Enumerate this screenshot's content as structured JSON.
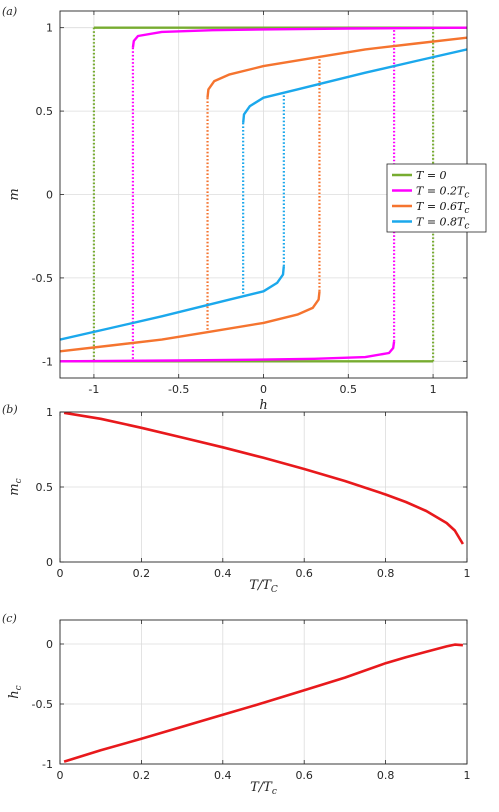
{
  "chart_data": [
    {
      "panel_label": "(a)",
      "type": "line",
      "xlabel": "h",
      "ylabel": "m",
      "xlim": [
        -1.2,
        1.2
      ],
      "ylim": [
        -1.1,
        1.1
      ],
      "xticks": [
        -1,
        -0.5,
        0,
        0.5,
        1
      ],
      "xtick_labels": [
        "-1",
        "-0.5",
        "0",
        "0.5",
        "1"
      ],
      "yticks": [
        -1,
        -0.5,
        0,
        0.5,
        1
      ],
      "ytick_labels": [
        "-1",
        "-0.5",
        "0",
        "0.5",
        "1"
      ],
      "grid": true,
      "legend_position": "right",
      "series": [
        {
          "name": "T = 0",
          "legend_main": "T = 0",
          "legend_sub": "",
          "color": "#77ac30",
          "switch_field": 1.0,
          "switch_magnetization": 1.0,
          "upper_branch": [
            [
              -1.0,
              1.0
            ],
            [
              -0.95,
              1.0
            ],
            [
              1.2,
              1.0
            ]
          ],
          "lower_branch": [
            [
              -1.2,
              -1.0
            ],
            [
              0.95,
              -1.0
            ],
            [
              1.0,
              -1.0
            ]
          ]
        },
        {
          "name": "T = 0.2Tc",
          "legend_main": "T = 0.2T",
          "legend_sub": "c",
          "color": "#ff00ff",
          "switch_field": 0.77,
          "switch_magnetization": 0.88,
          "upper_branch": [
            [
              -0.77,
              0.88
            ],
            [
              -0.765,
              0.92
            ],
            [
              -0.74,
              0.95
            ],
            [
              -0.6,
              0.975
            ],
            [
              -0.3,
              0.985
            ],
            [
              0.0,
              0.99
            ],
            [
              0.5,
              0.995
            ],
            [
              1.2,
              1.0
            ]
          ],
          "lower_branch": [
            [
              -1.2,
              -1.0
            ],
            [
              -0.5,
              -0.995
            ],
            [
              0.0,
              -0.99
            ],
            [
              0.3,
              -0.985
            ],
            [
              0.6,
              -0.975
            ],
            [
              0.74,
              -0.95
            ],
            [
              0.765,
              -0.92
            ],
            [
              0.77,
              -0.88
            ]
          ]
        },
        {
          "name": "T = 0.6Tc",
          "legend_main": "T = 0.6T",
          "legend_sub": "c",
          "color": "#f5742f",
          "switch_field": 0.33,
          "switch_magnetization": 0.58,
          "upper_branch": [
            [
              -0.33,
              0.58
            ],
            [
              -0.325,
              0.63
            ],
            [
              -0.29,
              0.68
            ],
            [
              -0.2,
              0.72
            ],
            [
              0.0,
              0.77
            ],
            [
              0.3,
              0.82
            ],
            [
              0.6,
              0.87
            ],
            [
              0.9,
              0.905
            ],
            [
              1.2,
              0.94
            ]
          ],
          "lower_branch": [
            [
              -1.2,
              -0.94
            ],
            [
              -0.9,
              -0.905
            ],
            [
              -0.6,
              -0.87
            ],
            [
              -0.3,
              -0.82
            ],
            [
              0.0,
              -0.77
            ],
            [
              0.2,
              -0.72
            ],
            [
              0.29,
              -0.68
            ],
            [
              0.325,
              -0.63
            ],
            [
              0.33,
              -0.58
            ]
          ]
        },
        {
          "name": "T = 0.8Tc",
          "legend_main": "T = 0.8T",
          "legend_sub": "c",
          "color": "#1ba8ec",
          "switch_field": 0.12,
          "switch_magnetization": 0.43,
          "upper_branch": [
            [
              -0.12,
              0.43
            ],
            [
              -0.115,
              0.48
            ],
            [
              -0.08,
              0.53
            ],
            [
              0.0,
              0.58
            ],
            [
              0.2,
              0.63
            ],
            [
              0.4,
              0.68
            ],
            [
              0.6,
              0.73
            ],
            [
              0.9,
              0.8
            ],
            [
              1.2,
              0.87
            ]
          ],
          "lower_branch": [
            [
              -1.2,
              -0.87
            ],
            [
              -0.9,
              -0.8
            ],
            [
              -0.6,
              -0.73
            ],
            [
              -0.4,
              -0.68
            ],
            [
              -0.2,
              -0.63
            ],
            [
              0.0,
              -0.58
            ],
            [
              0.08,
              -0.53
            ],
            [
              0.115,
              -0.48
            ],
            [
              0.12,
              -0.43
            ]
          ]
        }
      ]
    },
    {
      "panel_label": "(b)",
      "type": "line",
      "xlabel_main": "T/T",
      "xlabel_sub": "C",
      "ylabel_main": "m",
      "ylabel_sub": "c",
      "xlim": [
        0,
        1
      ],
      "ylim": [
        0,
        1
      ],
      "xticks": [
        0,
        0.2,
        0.4,
        0.6,
        0.8,
        1
      ],
      "xtick_labels": [
        "0",
        "0.2",
        "0.4",
        "0.6",
        "0.8",
        "1"
      ],
      "yticks": [
        0,
        0.5,
        1
      ],
      "ytick_labels": [
        "0",
        "0.5",
        "1"
      ],
      "grid": true,
      "series": [
        {
          "name": "",
          "color": "#e8191c",
          "points": [
            [
              0.01,
              0.995
            ],
            [
              0.1,
              0.955
            ],
            [
              0.2,
              0.895
            ],
            [
              0.3,
              0.83
            ],
            [
              0.4,
              0.765
            ],
            [
              0.5,
              0.695
            ],
            [
              0.6,
              0.62
            ],
            [
              0.7,
              0.54
            ],
            [
              0.8,
              0.45
            ],
            [
              0.85,
              0.4
            ],
            [
              0.9,
              0.34
            ],
            [
              0.95,
              0.26
            ],
            [
              0.97,
              0.21
            ],
            [
              0.99,
              0.12
            ]
          ]
        }
      ]
    },
    {
      "panel_label": "(c)",
      "type": "line",
      "xlabel_main": "T/T",
      "xlabel_sub": "c",
      "ylabel_main": "h",
      "ylabel_sub": "c",
      "xlim": [
        0,
        1
      ],
      "ylim": [
        -1,
        0.2
      ],
      "xticks": [
        0,
        0.2,
        0.4,
        0.6,
        0.8,
        1
      ],
      "xtick_labels": [
        "0",
        "0.2",
        "0.4",
        "0.6",
        "0.8",
        "1"
      ],
      "yticks": [
        -1,
        -0.5,
        0
      ],
      "ytick_labels": [
        "-1",
        "-0.5",
        "0"
      ],
      "grid": true,
      "series": [
        {
          "name": "",
          "color": "#e8191c",
          "points": [
            [
              0.01,
              -0.98
            ],
            [
              0.1,
              -0.885
            ],
            [
              0.2,
              -0.79
            ],
            [
              0.3,
              -0.69
            ],
            [
              0.4,
              -0.59
            ],
            [
              0.5,
              -0.49
            ],
            [
              0.6,
              -0.385
            ],
            [
              0.7,
              -0.28
            ],
            [
              0.8,
              -0.16
            ],
            [
              0.85,
              -0.11
            ],
            [
              0.9,
              -0.065
            ],
            [
              0.95,
              -0.02
            ],
            [
              0.97,
              -0.005
            ],
            [
              0.99,
              -0.01
            ]
          ]
        }
      ]
    }
  ]
}
